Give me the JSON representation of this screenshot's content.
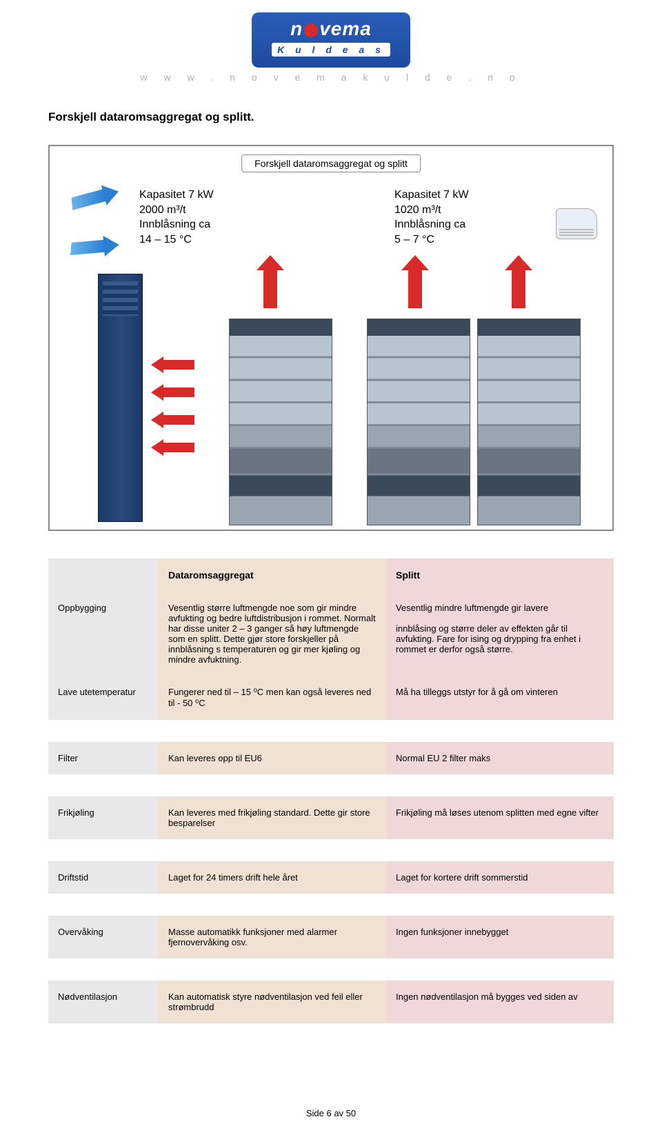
{
  "header": {
    "logo_main": "n vema",
    "logo_sub": "K u l d e  a s",
    "url": "w w w . n o v e m a k u l d e . n o"
  },
  "title": "Forskjell dataromsaggregat og splitt.",
  "diagram": {
    "label": "Forskjell dataromsaggregat og splitt",
    "left_spec": "Kapasitet 7 kW\n2000 m³/t\nInnblåsning ca\n14 – 15 °C",
    "right_spec": "Kapasitet 7 kW\n1020 m³/t\nInnblåsning ca\n5 – 7 °C"
  },
  "table": {
    "col_header_b": "Dataromsaggregat",
    "col_header_c": "Splitt",
    "rows": [
      {
        "label": "Oppbygging",
        "b": "Vesentlig større luftmengde noe som gir mindre avfukting og bedre luftdistribusjon i rommet. Normalt har disse uniter 2 – 3 ganger så høy luftmengde som en splitt. Dette gjør store forskjeller på innblåsning s temperaturen og gir mer kjøling og mindre avfuktning.",
        "c": "Vesentlig mindre luftmengde gir lavere\n\ninnblåsing og større deler av effekten går til avfukting. Fare for ising og drypping fra enhet i rommet er derfor også større."
      },
      {
        "label": "Lave utetemperatur",
        "b": "Fungerer ned til – 15 ⁰C men kan også leveres ned til - 50 ⁰C",
        "c": "Må ha tilleggs utstyr for å gå om vinteren"
      },
      {
        "label": "Filter",
        "b": "Kan leveres opp til EU6",
        "c": "Normal EU 2 filter maks"
      },
      {
        "label": "Frikjøling",
        "b": "Kan leveres med frikjøling standard. Dette gir store besparelser",
        "c": "Frikjøling må løses utenom splitten med egne vifter"
      },
      {
        "label": "Driftstid",
        "b": "Laget for 24 timers drift hele året",
        "c": "Laget for kortere drift sommerstid"
      },
      {
        "label": "Overvåking",
        "b": "Masse automatikk funksjoner med alarmer fjernovervåking osv.",
        "c": "Ingen funksjoner innebygget"
      },
      {
        "label": "Nødventilasjon",
        "b": "Kan automatisk styre nødventilasjon ved feil eller strømbrudd",
        "c": "Ingen nødventilasjon må bygges ved siden av"
      }
    ]
  },
  "footer": "Side 6 av 50"
}
